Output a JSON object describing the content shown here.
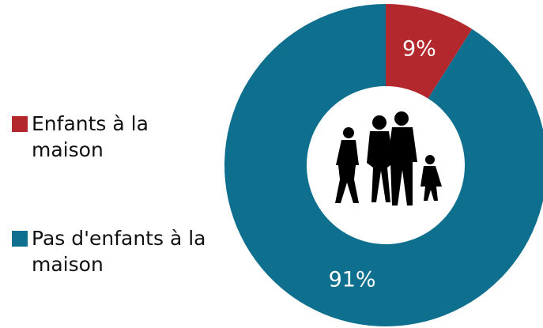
{
  "chart_data": {
    "type": "pie",
    "categories": [
      "Enfants à la maison",
      "Pas d'enfants à la maison"
    ],
    "values": [
      9,
      91
    ],
    "value_labels": [
      "9%",
      "91%"
    ],
    "colors": [
      "#b3282d",
      "#0e6f8f"
    ]
  }
}
